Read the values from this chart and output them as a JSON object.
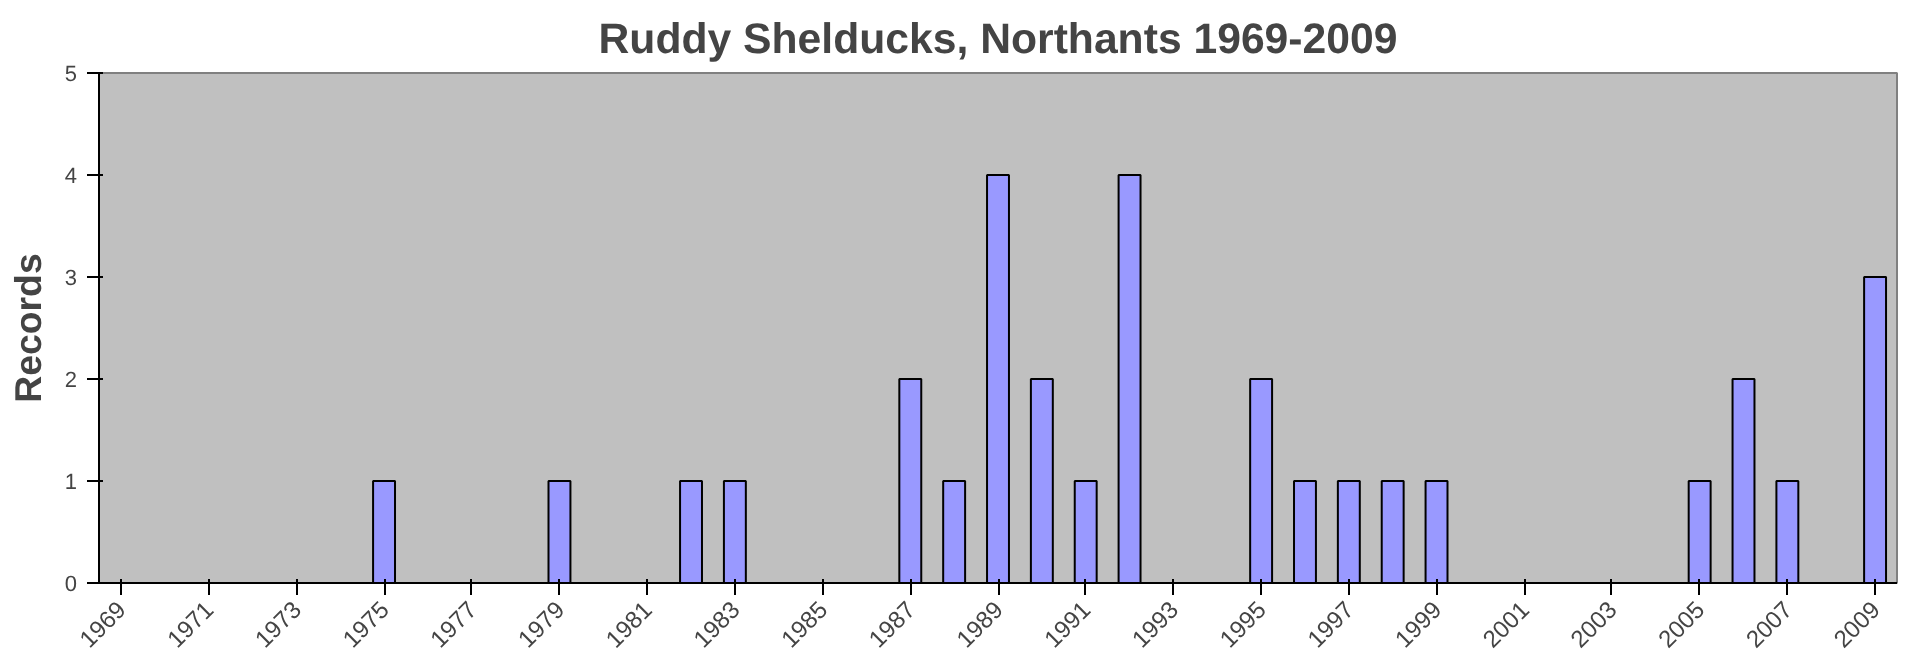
{
  "chart_data": {
    "type": "bar",
    "title": "Ruddy Shelducks, Northants 1969-2009",
    "ylabel": "Records",
    "categories": [
      "1969",
      null,
      "1971",
      null,
      "1973",
      null,
      "1975",
      null,
      "1977",
      null,
      "1979",
      null,
      "1981",
      null,
      "1983",
      null,
      "1985",
      null,
      "1987",
      null,
      "1989",
      null,
      "1991",
      null,
      "1993",
      null,
      "1995",
      null,
      "1997",
      null,
      "1999",
      null,
      "2001",
      null,
      "2003",
      null,
      "2005",
      null,
      "2007",
      null,
      "2009"
    ],
    "values": [
      0,
      0,
      0,
      0,
      0,
      0,
      1,
      0,
      0,
      0,
      1,
      0,
      0,
      1,
      1,
      0,
      0,
      0,
      2,
      1,
      4,
      2,
      1,
      4,
      0,
      0,
      2,
      1,
      1,
      1,
      1,
      0,
      0,
      0,
      0,
      0,
      1,
      2,
      1,
      0,
      3
    ],
    "color": "#9999ff",
    "ylim": [
      0,
      5
    ],
    "yticks": [
      0,
      1,
      2,
      3,
      4,
      5
    ],
    "grid": false
  }
}
